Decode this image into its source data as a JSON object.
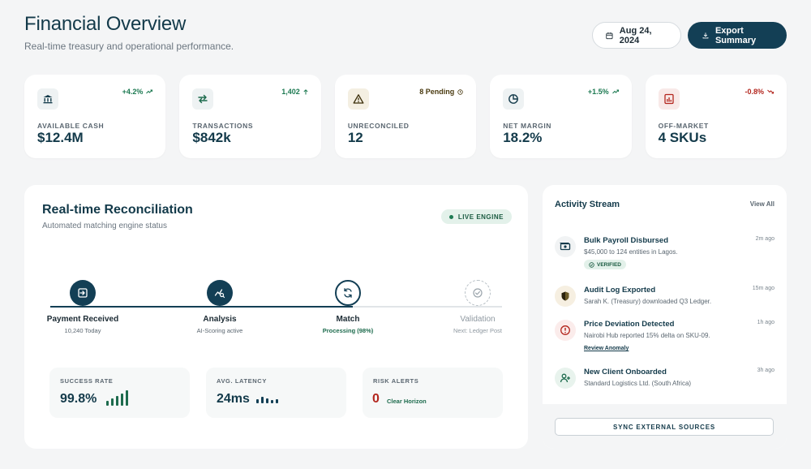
{
  "header": {
    "title": "Financial Overview",
    "subtitle": "Real-time treasury and operational performance.",
    "date_label": "Aug 24, 2024",
    "export_label": "Export Summary"
  },
  "kpis": [
    {
      "icon": "bank-icon",
      "badge": "+4.2%",
      "badge_color": "#1d7a52",
      "label": "AVAILABLE CASH",
      "value": "$12.4M"
    },
    {
      "icon": "transfer-arrows-icon",
      "badge": "1,402",
      "badge_color": "#1d7a52",
      "label": "TRANSACTIONS",
      "value": "$842k"
    },
    {
      "icon": "warning-icon",
      "badge": "8 Pending",
      "badge_color": "#4a3a10",
      "label": "UNRECONCILED",
      "value": "12"
    },
    {
      "icon": "pie-chart-icon",
      "badge": "+1.5%",
      "badge_color": "#1d7a52",
      "label": "NET MARGIN",
      "value": "18.2%"
    },
    {
      "icon": "report-icon",
      "badge": "-0.8%",
      "badge_color": "#b3261e",
      "label": "OFF-MARKET",
      "value": "4 SKUs"
    }
  ],
  "reconciliation": {
    "title": "Real-time Reconciliation",
    "subtitle": "Automated matching engine status",
    "badge": "LIVE ENGINE",
    "progress": 0.67,
    "steps": [
      {
        "name": "Payment Received",
        "desc": "10,240 Today",
        "state": "done"
      },
      {
        "name": "Analysis",
        "desc": "AI-Scoring active",
        "state": "done"
      },
      {
        "name": "Match",
        "desc": "Processing (98%)",
        "state": "active"
      },
      {
        "name": "Validation",
        "desc": "Next: Ledger Post",
        "state": "pending"
      }
    ],
    "metrics": {
      "success": {
        "label": "SUCCESS RATE",
        "value": "99.8%"
      },
      "latency": {
        "label": "AVG. LATENCY",
        "value": "24ms"
      },
      "risk": {
        "label": "RISK ALERTS",
        "value": "0",
        "note": "Clear Horizon"
      }
    }
  },
  "activity": {
    "title": "Activity Stream",
    "view_all": "View All",
    "items": [
      {
        "title": "Bulk Payroll Disbursed",
        "desc": "$45,000 to 124 entities in Lagos.",
        "time": "2m ago",
        "tag": "VERIFIED"
      },
      {
        "title": "Audit Log Exported",
        "desc": "Sarah K. (Treasury) downloaded Q3 Ledger.",
        "time": "15m ago"
      },
      {
        "title": "Price Deviation Detected",
        "desc": "Nairobi Hub reported 15% delta on SKU-09.",
        "time": "1h ago",
        "link": "Review Anomaly"
      },
      {
        "title": "New Client Onboarded",
        "desc": "Standard Logistics Ltd. (South Africa)",
        "time": "3h ago"
      }
    ],
    "sync_label": "SYNC EXTERNAL SOURCES"
  }
}
